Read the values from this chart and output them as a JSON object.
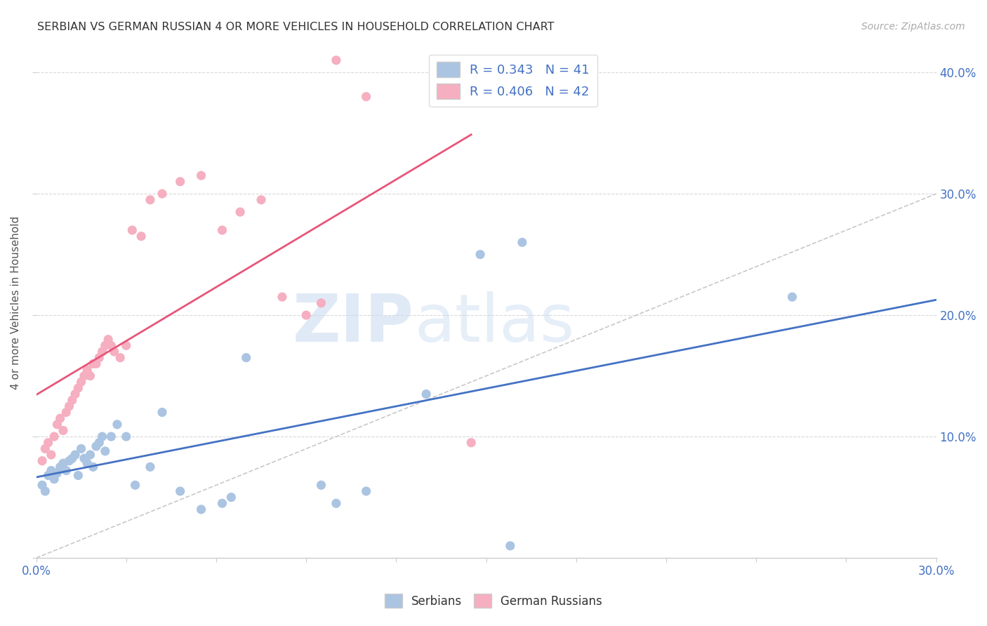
{
  "title": "SERBIAN VS GERMAN RUSSIAN 4 OR MORE VEHICLES IN HOUSEHOLD CORRELATION CHART",
  "source": "Source: ZipAtlas.com",
  "ylabel": "4 or more Vehicles in Household",
  "xlim": [
    0.0,
    0.3
  ],
  "ylim": [
    0.0,
    0.42
  ],
  "xticks": [
    0.0,
    0.03,
    0.06,
    0.09,
    0.12,
    0.15,
    0.18,
    0.21,
    0.24,
    0.27,
    0.3
  ],
  "yticks": [
    0.0,
    0.1,
    0.2,
    0.3,
    0.4
  ],
  "xlabels_show": [
    "0.0%",
    "30.0%"
  ],
  "ylabels_right": [
    "",
    "10.0%",
    "20.0%",
    "30.0%",
    "40.0%"
  ],
  "legend_r1": "R = 0.343",
  "legend_n1": "N = 41",
  "legend_r2": "R = 0.406",
  "legend_n2": "N = 42",
  "serbian_color": "#aac4e2",
  "german_russian_color": "#f5afc0",
  "serbian_line_color": "#4472c4",
  "german_russian_line_color": "#e8557a",
  "diagonal_color": "#c8c8c8",
  "watermark_zip": "ZIP",
  "watermark_atlas": "atlas",
  "background_color": "#ffffff",
  "grid_color": "#d8d8d8",
  "serbian_x": [
    0.002,
    0.003,
    0.004,
    0.005,
    0.006,
    0.007,
    0.008,
    0.009,
    0.01,
    0.011,
    0.012,
    0.013,
    0.014,
    0.015,
    0.016,
    0.017,
    0.018,
    0.019,
    0.02,
    0.021,
    0.022,
    0.023,
    0.025,
    0.027,
    0.03,
    0.033,
    0.038,
    0.042,
    0.048,
    0.055,
    0.062,
    0.065,
    0.07,
    0.095,
    0.1,
    0.11,
    0.13,
    0.148,
    0.162,
    0.252,
    0.158
  ],
  "serbian_y": [
    0.06,
    0.055,
    0.068,
    0.072,
    0.065,
    0.07,
    0.075,
    0.078,
    0.072,
    0.08,
    0.082,
    0.085,
    0.068,
    0.09,
    0.082,
    0.078,
    0.085,
    0.075,
    0.092,
    0.095,
    0.1,
    0.088,
    0.1,
    0.11,
    0.1,
    0.06,
    0.075,
    0.12,
    0.055,
    0.04,
    0.045,
    0.05,
    0.165,
    0.06,
    0.045,
    0.055,
    0.135,
    0.25,
    0.26,
    0.215,
    0.01
  ],
  "german_russian_x": [
    0.002,
    0.003,
    0.004,
    0.005,
    0.006,
    0.007,
    0.008,
    0.009,
    0.01,
    0.011,
    0.012,
    0.013,
    0.014,
    0.015,
    0.016,
    0.017,
    0.018,
    0.019,
    0.02,
    0.021,
    0.022,
    0.023,
    0.024,
    0.025,
    0.026,
    0.028,
    0.03,
    0.032,
    0.035,
    0.038,
    0.042,
    0.048,
    0.055,
    0.062,
    0.068,
    0.075,
    0.082,
    0.09,
    0.095,
    0.1,
    0.11,
    0.145
  ],
  "german_russian_y": [
    0.08,
    0.09,
    0.095,
    0.085,
    0.1,
    0.11,
    0.115,
    0.105,
    0.12,
    0.125,
    0.13,
    0.135,
    0.14,
    0.145,
    0.15,
    0.155,
    0.15,
    0.16,
    0.16,
    0.165,
    0.17,
    0.175,
    0.18,
    0.175,
    0.17,
    0.165,
    0.175,
    0.27,
    0.265,
    0.295,
    0.3,
    0.31,
    0.315,
    0.27,
    0.285,
    0.295,
    0.215,
    0.2,
    0.21,
    0.41,
    0.38,
    0.095
  ]
}
